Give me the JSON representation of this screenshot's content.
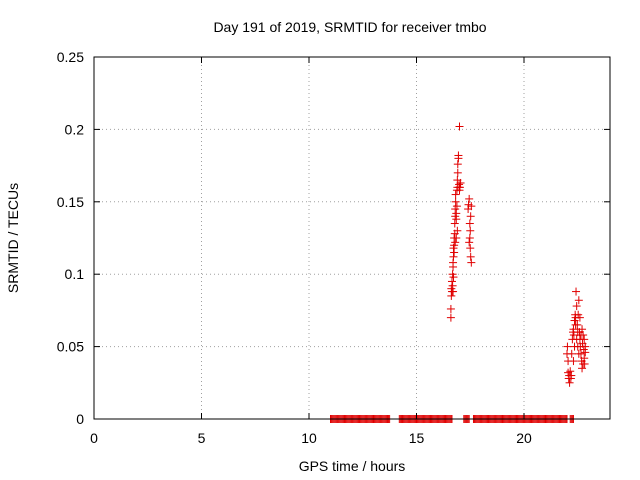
{
  "chart_data": {
    "type": "scatter",
    "title": "Day 191 of 2019, SRMTID for receiver tmbo",
    "xlabel": "GPS time / hours",
    "ylabel": "SRMTID / TECUs",
    "xlim": [
      0,
      24
    ],
    "ylim": [
      0,
      0.25
    ],
    "x_ticks": [
      0,
      5,
      10,
      15,
      20
    ],
    "y_ticks": [
      0,
      0.05,
      0.1,
      0.15,
      0.2,
      0.25
    ],
    "x_tick_labels": [
      "0",
      "5",
      "10",
      "15",
      "20"
    ],
    "y_tick_labels": [
      "0",
      "0.05",
      "0.1",
      "0.15",
      "0.2",
      "0.25"
    ],
    "grid": true,
    "marker": "+",
    "color": "#e00000",
    "zero_segments": [
      [
        11.0,
        13.75
      ],
      [
        14.2,
        16.65
      ],
      [
        17.2,
        17.45
      ],
      [
        17.65,
        22.0
      ],
      [
        22.15,
        22.3
      ]
    ],
    "zero_step": 0.05,
    "series": [
      {
        "name": "SRMTID",
        "points": [
          [
            16.6,
            0.07
          ],
          [
            16.6,
            0.076
          ],
          [
            16.62,
            0.085
          ],
          [
            16.62,
            0.09
          ],
          [
            16.65,
            0.088
          ],
          [
            16.65,
            0.095
          ],
          [
            16.68,
            0.092
          ],
          [
            16.68,
            0.1
          ],
          [
            16.7,
            0.105
          ],
          [
            16.7,
            0.108
          ],
          [
            16.72,
            0.112
          ],
          [
            16.72,
            0.118
          ],
          [
            16.75,
            0.12
          ],
          [
            16.75,
            0.125
          ],
          [
            16.78,
            0.128
          ],
          [
            16.78,
            0.135
          ],
          [
            16.8,
            0.14
          ],
          [
            16.8,
            0.145
          ],
          [
            16.82,
            0.15
          ],
          [
            16.82,
            0.155
          ],
          [
            16.85,
            0.138
          ],
          [
            16.85,
            0.142
          ],
          [
            16.88,
            0.147
          ],
          [
            16.88,
            0.158
          ],
          [
            16.9,
            0.16
          ],
          [
            16.9,
            0.165
          ],
          [
            16.92,
            0.17
          ],
          [
            16.92,
            0.176
          ],
          [
            16.95,
            0.18
          ],
          [
            16.95,
            0.182
          ],
          [
            16.98,
            0.16
          ],
          [
            16.98,
            0.162
          ],
          [
            17.0,
            0.202
          ],
          [
            17.0,
            0.158
          ],
          [
            17.02,
            0.16
          ],
          [
            17.05,
            0.163
          ],
          [
            16.7,
            0.088
          ],
          [
            16.72,
            0.098
          ],
          [
            16.75,
            0.115
          ],
          [
            16.8,
            0.122
          ],
          [
            16.85,
            0.125
          ],
          [
            16.9,
            0.13
          ],
          [
            17.4,
            0.145
          ],
          [
            17.42,
            0.148
          ],
          [
            17.45,
            0.152
          ],
          [
            17.48,
            0.135
          ],
          [
            17.5,
            0.13
          ],
          [
            17.45,
            0.122
          ],
          [
            17.5,
            0.118
          ],
          [
            17.52,
            0.112
          ],
          [
            17.55,
            0.108
          ],
          [
            17.48,
            0.125
          ],
          [
            17.52,
            0.14
          ],
          [
            17.55,
            0.147
          ],
          [
            22.0,
            0.045
          ],
          [
            22.02,
            0.05
          ],
          [
            22.05,
            0.04
          ],
          [
            22.05,
            0.032
          ],
          [
            22.08,
            0.028
          ],
          [
            22.1,
            0.03
          ],
          [
            22.12,
            0.025
          ],
          [
            22.15,
            0.033
          ],
          [
            22.18,
            0.028
          ],
          [
            22.2,
            0.03
          ],
          [
            22.22,
            0.045
          ],
          [
            22.25,
            0.055
          ],
          [
            22.28,
            0.06
          ],
          [
            22.3,
            0.062
          ],
          [
            22.32,
            0.058
          ],
          [
            22.35,
            0.068
          ],
          [
            22.38,
            0.072
          ],
          [
            22.4,
            0.07
          ],
          [
            22.42,
            0.088
          ],
          [
            22.45,
            0.078
          ],
          [
            22.48,
            0.065
          ],
          [
            22.5,
            0.06
          ],
          [
            22.52,
            0.072
          ],
          [
            22.55,
            0.082
          ],
          [
            22.58,
            0.06
          ],
          [
            22.6,
            0.055
          ],
          [
            22.62,
            0.05
          ],
          [
            22.65,
            0.045
          ],
          [
            22.68,
            0.04
          ],
          [
            22.7,
            0.035
          ],
          [
            22.72,
            0.052
          ],
          [
            22.75,
            0.058
          ],
          [
            22.78,
            0.048
          ],
          [
            22.8,
            0.042
          ],
          [
            22.82,
            0.038
          ],
          [
            22.85,
            0.046
          ],
          [
            22.3,
            0.04
          ],
          [
            22.35,
            0.05
          ],
          [
            22.45,
            0.055
          ],
          [
            22.55,
            0.045
          ],
          [
            22.65,
            0.058
          ],
          [
            22.75,
            0.038
          ],
          [
            22.4,
            0.065
          ],
          [
            22.5,
            0.05
          ],
          [
            22.6,
            0.07
          ],
          [
            22.7,
            0.062
          ],
          [
            22.8,
            0.055
          ],
          [
            22.85,
            0.05
          ]
        ]
      }
    ]
  }
}
